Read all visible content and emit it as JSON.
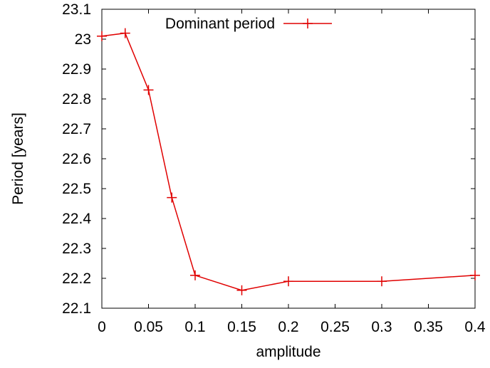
{
  "chart_data": {
    "type": "line",
    "title": "",
    "xlabel": "amplitude",
    "ylabel": "Period [years]",
    "xlim": [
      0,
      0.4
    ],
    "ylim": [
      22.1,
      23.1
    ],
    "x_ticks": [
      0,
      0.05,
      0.1,
      0.15,
      0.2,
      0.25,
      0.3,
      0.35,
      0.4
    ],
    "x_tick_labels": [
      "0",
      "0.05",
      "0.1",
      "0.15",
      "0.2",
      "0.25",
      "0.3",
      "0.35",
      "0.4"
    ],
    "y_ticks": [
      22.1,
      22.2,
      22.3,
      22.4,
      22.5,
      22.6,
      22.7,
      22.8,
      22.9,
      23.0,
      23.1
    ],
    "y_tick_labels": [
      "22.1",
      "22.2",
      "22.3",
      "22.4",
      "22.5",
      "22.6",
      "22.7",
      "22.8",
      "22.9",
      "23",
      "23.1"
    ],
    "grid": false,
    "legend_position": "top-left",
    "series": [
      {
        "name": "Dominant period",
        "color": "#e00000",
        "marker": "plus",
        "x": [
          0,
          0.025,
          0.05,
          0.075,
          0.1,
          0.15,
          0.2,
          0.3,
          0.4
        ],
        "y": [
          23.01,
          23.02,
          22.83,
          22.47,
          22.21,
          22.16,
          22.19,
          22.19,
          22.21
        ]
      }
    ]
  }
}
